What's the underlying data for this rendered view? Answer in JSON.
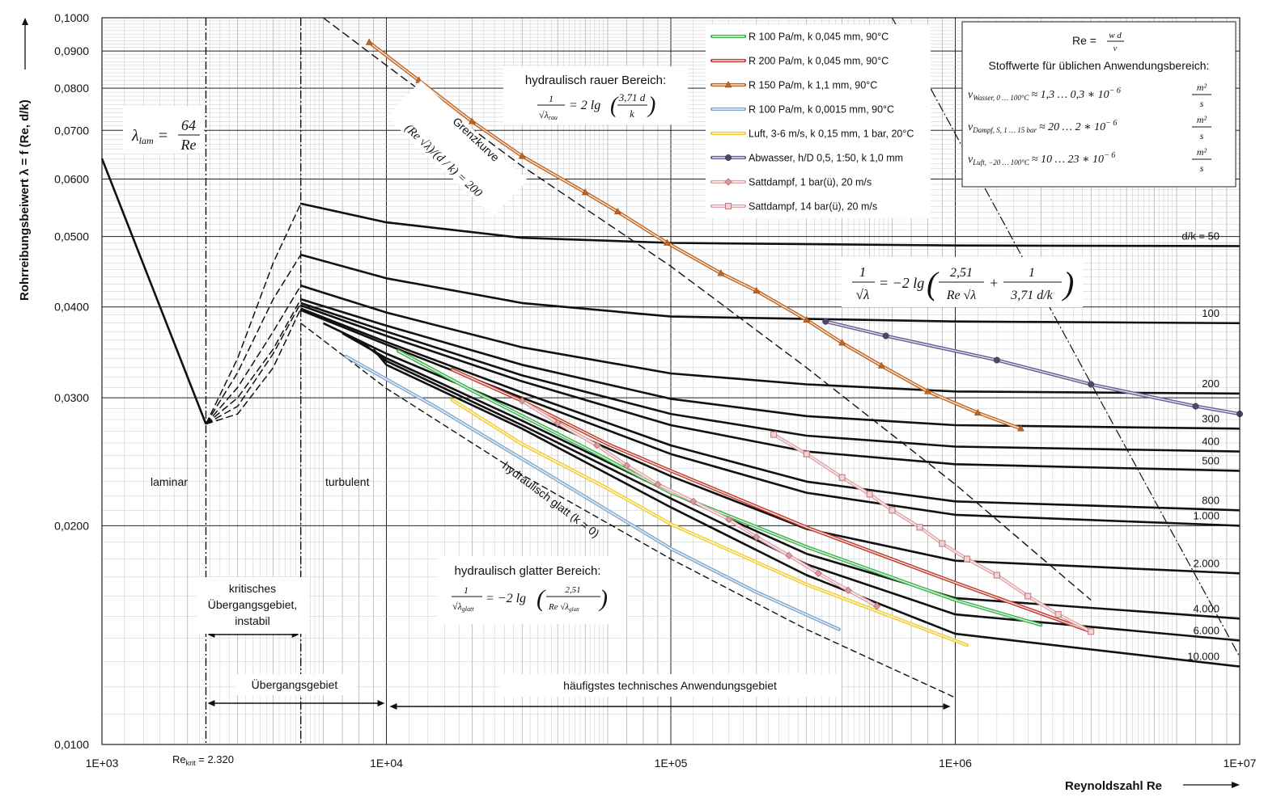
{
  "chart_data": {
    "type": "line",
    "title": "",
    "xlabel": "Reynoldszahl Re",
    "ylabel": "Rohrreibungsbeiwert λ = f (Re, d/k)",
    "x_scale": "log",
    "y_scale": "log",
    "xlim": [
      1000,
      10000000
    ],
    "ylim": [
      0.01,
      0.1
    ],
    "grid": true,
    "x_tick_labels": [
      "1E+03",
      "1E+04",
      "1E+05",
      "1E+06",
      "1E+07"
    ],
    "y_tick_labels": [
      {
        "value": 0.1,
        "label": "0,1000"
      },
      {
        "value": 0.09,
        "label": "0,0900"
      },
      {
        "value": 0.08,
        "label": "0,0800"
      },
      {
        "value": 0.07,
        "label": "0,0700"
      },
      {
        "value": 0.06,
        "label": "0,0600"
      },
      {
        "value": 0.05,
        "label": "0,0500"
      },
      {
        "value": 0.04,
        "label": "0,0400"
      },
      {
        "value": 0.03,
        "label": "0,0300"
      },
      {
        "value": 0.02,
        "label": "0,0200"
      },
      {
        "value": 0.01,
        "label": "0,0100"
      }
    ],
    "legend": {
      "placement": "top-center",
      "entries": [
        {
          "name": "R 100 Pa/m, k 0,045 mm, 90°C",
          "color": "#3cb44b",
          "marker": "none"
        },
        {
          "name": "R 200 Pa/m, k 0,045 mm, 90°C",
          "color": "#c0392b",
          "marker": "none"
        },
        {
          "name": "R 150 Pa/m, k 1,1 mm, 90°C",
          "color": "#c0651f",
          "marker": "triangle"
        },
        {
          "name": "R 100 Pa/m, k 0,0015 mm, 90°C",
          "color": "#7fa7d0",
          "marker": "none"
        },
        {
          "name": "Luft, 3-6 m/s, k 0,15 mm, 1 bar, 20°C",
          "color": "#f2cc2e",
          "marker": "none"
        },
        {
          "name": "Abwasser, h/D 0,5, 1:50, k 1,0 mm",
          "color": "#6b5b95",
          "marker": "circle"
        },
        {
          "name": "Sattdampf, 1 bar(ü), 20 m/s",
          "color": "#e0a3a8",
          "marker": "diamond"
        },
        {
          "name": "Sattdampf, 14 bar(ü), 20 m/s",
          "color": "#e0a3a8",
          "marker": "square"
        }
      ]
    },
    "laminar": {
      "x": [
        1000,
        2320
      ],
      "y": [
        0.064,
        0.0276
      ]
    },
    "transition_curves": [
      {
        "x": [
          2320,
          3000,
          4000,
          5000
        ],
        "y": [
          0.0276,
          0.034,
          0.046,
          0.0555
        ]
      },
      {
        "x": [
          2320,
          3000,
          4000,
          5000
        ],
        "y": [
          0.0276,
          0.0325,
          0.041,
          0.0472
        ]
      },
      {
        "x": [
          2320,
          3000,
          4000,
          5000
        ],
        "y": [
          0.0276,
          0.031,
          0.037,
          0.0428
        ]
      },
      {
        "x": [
          2320,
          3000,
          4000,
          5000
        ],
        "y": [
          0.0276,
          0.03,
          0.035,
          0.041
        ]
      },
      {
        "x": [
          2320,
          3000,
          4000,
          5000
        ],
        "y": [
          0.0276,
          0.0292,
          0.0345,
          0.0405
        ]
      },
      {
        "x": [
          2320,
          3000,
          4000,
          5000
        ],
        "y": [
          0.0276,
          0.0285,
          0.033,
          0.0398
        ]
      }
    ],
    "roughness_curves": [
      {
        "label": "d/k = 50",
        "x": [
          5000,
          10000,
          30000,
          100000,
          1000000,
          10000000
        ],
        "y": [
          0.0555,
          0.0523,
          0.0498,
          0.049,
          0.0486,
          0.0485
        ]
      },
      {
        "label": "100",
        "x": [
          5000,
          10000,
          30000,
          100000,
          1000000,
          10000000
        ],
        "y": [
          0.0472,
          0.0438,
          0.0405,
          0.0388,
          0.0382,
          0.038
        ]
      },
      {
        "label": "200",
        "x": [
          5000,
          10000,
          30000,
          100000,
          300000,
          1000000,
          10000000
        ],
        "y": [
          0.0428,
          0.0393,
          0.0352,
          0.0324,
          0.0313,
          0.0306,
          0.0304
        ]
      },
      {
        "label": "300",
        "x": [
          5000,
          10000,
          30000,
          100000,
          300000,
          1000000,
          10000000
        ],
        "y": [
          0.041,
          0.0377,
          0.0333,
          0.0299,
          0.0283,
          0.0275,
          0.0272
        ]
      },
      {
        "label": "400",
        "x": [
          5000,
          10000,
          30000,
          100000,
          300000,
          1000000,
          10000000
        ],
        "y": [
          0.0405,
          0.037,
          0.0322,
          0.0285,
          0.0266,
          0.0257,
          0.0253
        ]
      },
      {
        "label": "500",
        "x": [
          5000,
          10000,
          30000,
          100000,
          300000,
          1000000,
          10000000
        ],
        "y": [
          0.0402,
          0.0365,
          0.0316,
          0.0275,
          0.0253,
          0.0243,
          0.0238
        ]
      },
      {
        "label": "800",
        "x": [
          5000,
          10000,
          30000,
          100000,
          300000,
          1000000,
          10000000
        ],
        "y": [
          0.0398,
          0.0358,
          0.0305,
          0.0258,
          0.023,
          0.0216,
          0.021
        ]
      },
      {
        "label": "1.000",
        "x": [
          5000,
          10000,
          30000,
          100000,
          300000,
          1000000,
          10000000
        ],
        "y": [
          0.0396,
          0.0355,
          0.03,
          0.0251,
          0.0222,
          0.0207,
          0.02
        ]
      },
      {
        "label": "2.000",
        "x": [
          6000,
          10000,
          30000,
          100000,
          300000,
          1000000,
          10000000
        ],
        "y": [
          0.038,
          0.0345,
          0.0288,
          0.0234,
          0.0198,
          0.0179,
          0.0172
        ]
      },
      {
        "label": "4.000",
        "x": [
          7000,
          10000,
          30000,
          100000,
          300000,
          1000000,
          10000000
        ],
        "y": [
          0.0368,
          0.034,
          0.0279,
          0.0222,
          0.0183,
          0.0159,
          0.0149
        ]
      },
      {
        "label": "6.000",
        "x": [
          8000,
          10000,
          30000,
          100000,
          300000,
          1000000,
          10000000
        ],
        "y": [
          0.036,
          0.0337,
          0.0275,
          0.0218,
          0.0177,
          0.0151,
          0.0139
        ]
      },
      {
        "label": "10.000",
        "x": [
          9000,
          10000,
          30000,
          100000,
          300000,
          1000000,
          10000000
        ],
        "y": [
          0.035,
          0.0333,
          0.0272,
          0.0212,
          0.0171,
          0.0142,
          0.0128
        ]
      }
    ],
    "smooth_curve": {
      "x": [
        5000,
        10000,
        30000,
        100000,
        300000,
        1000000
      ],
      "y": [
        0.038,
        0.0309,
        0.0235,
        0.018,
        0.0144,
        0.0116
      ]
    },
    "limit_curve": {
      "x": [
        6000,
        10000,
        30000,
        100000,
        300000,
        1000000,
        3000000
      ],
      "y": [
        0.1,
        0.086,
        0.0625,
        0.0455,
        0.033,
        0.0228,
        0.0158
      ]
    },
    "series": [
      {
        "name": "R 100 Pa/m, k 0,045 mm, 90°C",
        "color": "#3cb44b",
        "marker": "none",
        "x": [
          11000,
          20000,
          50000,
          100000,
          300000,
          1000000,
          2000000
        ],
        "y": [
          0.0348,
          0.0307,
          0.0256,
          0.0222,
          0.0187,
          0.0158,
          0.0146
        ]
      },
      {
        "name": "R 200 Pa/m, k 0,045 mm, 90°C",
        "color": "#c0392b",
        "marker": "none",
        "x": [
          17000,
          30000,
          60000,
          100000,
          300000,
          1000000,
          3000000
        ],
        "y": [
          0.0328,
          0.0297,
          0.0259,
          0.0238,
          0.0199,
          0.0167,
          0.0143
        ]
      },
      {
        "name": "R 150 Pa/m, k 1,1 mm, 90°C",
        "color": "#c0651f",
        "marker": "triangle",
        "x": [
          8700,
          13000,
          20000,
          30000,
          50000,
          65000,
          97000,
          150000,
          200000,
          300000,
          400000,
          550000,
          800000,
          1200000,
          1700000
        ],
        "y": [
          0.0925,
          0.082,
          0.072,
          0.0645,
          0.0575,
          0.0541,
          0.049,
          0.0445,
          0.0421,
          0.0384,
          0.0357,
          0.0332,
          0.0306,
          0.0286,
          0.0272
        ]
      },
      {
        "name": "R 100 Pa/m, k 0,0015 mm, 90°C",
        "color": "#7fa7d0",
        "marker": "none",
        "x": [
          7200,
          15000,
          40000,
          100000,
          200000,
          390000
        ],
        "y": [
          0.0342,
          0.0291,
          0.0231,
          0.0186,
          0.0162,
          0.0144
        ]
      },
      {
        "name": "Luft, 3-6 m/s, k 0,15 mm, 1 bar, 20°C",
        "color": "#f2cc2e",
        "marker": "none",
        "x": [
          17000,
          30000,
          60000,
          100000,
          300000,
          1100000
        ],
        "y": [
          0.0298,
          0.0259,
          0.0225,
          0.0201,
          0.0166,
          0.0137
        ]
      },
      {
        "name": "Abwasser, h/D 0,5, 1:50, k 1,0 mm",
        "color": "#6b5b95",
        "marker": "circle",
        "x": [
          350000,
          570000,
          1400000,
          3000000,
          7000000,
          10000000
        ],
        "y": [
          0.0382,
          0.0365,
          0.0338,
          0.0313,
          0.0292,
          0.0285
        ]
      },
      {
        "name": "Sattdampf, 1 bar(ü), 20 m/s",
        "color": "#e0a3a8",
        "marker": "diamond",
        "x": [
          30000,
          40000,
          55000,
          70000,
          90000,
          120000,
          160000,
          200000,
          260000,
          330000,
          420000,
          530000
        ],
        "y": [
          0.0297,
          0.0277,
          0.0258,
          0.0242,
          0.0228,
          0.0216,
          0.0204,
          0.0193,
          0.0182,
          0.0172,
          0.0163,
          0.0155
        ]
      },
      {
        "name": "Sattdampf, 14 bar(ü), 20 m/s",
        "color": "#e0a3a8",
        "marker": "square",
        "x": [
          230000,
          300000,
          400000,
          500000,
          600000,
          750000,
          900000,
          1100000,
          1400000,
          1800000,
          2300000,
          3000000
        ],
        "y": [
          0.0267,
          0.0251,
          0.0233,
          0.0221,
          0.021,
          0.0199,
          0.0189,
          0.018,
          0.0171,
          0.016,
          0.0151,
          0.0143
        ]
      }
    ],
    "vertical_markers": [
      2320,
      5000
    ],
    "region_labels": {
      "laminar": "laminar",
      "turbulent": "turbulent",
      "critical": [
        "kritisches",
        "Übergangsgebiet,",
        "instabil"
      ],
      "transition": "Übergangsgebiet",
      "common": "häufigstes technisches Anwendungsgebiet",
      "rough": "hydraulisch rauer Bereich:",
      "smooth": "hydraulisch glatter Bereich:",
      "smooth_curve": "hydraulisch glatt (k = 0)",
      "limit_curve": "Grenzkurve",
      "limit_eq": "(Re √λ)/(d / k) = 200",
      "rekrit_prefix": "Re",
      "rekrit_sub": "krit",
      "rekrit_value": " = 2.320"
    },
    "formulas": {
      "laminar_lhs": "λ",
      "laminar_sub": "lam",
      "laminar_num": "64",
      "laminar_den": "Re",
      "rough_num": "1",
      "rough_den": "√λ",
      "rough_den_sub": "rau",
      "rough_rhs": "= 2 lg",
      "rough_arg_num": "3,71 d",
      "rough_arg_den": "k",
      "colebrook_num": "1",
      "colebrook_den": "√λ",
      "colebrook_mid": "= −2 lg",
      "colebrook_a_num": "2,51",
      "colebrook_a_den": "Re √λ",
      "colebrook_plus": "+",
      "colebrook_b_num": "1",
      "colebrook_b_den": "3,71  d/k",
      "smooth_num": "1",
      "smooth_den": "√λ",
      "smooth_den_sub": "glatt",
      "smooth_rhs": "= −2 lg",
      "smooth_arg_num": "2,51",
      "smooth_arg_den": "Re √λ",
      "smooth_arg_den_sub": "glatt"
    },
    "info_box": {
      "re_lhs": "Re =",
      "re_num": "w d",
      "re_den": "ν",
      "heading": "Stoffwerte für üblichen Anwendungsbereich:",
      "rows": [
        {
          "sym": "ν",
          "sub": "Wasser, 0 … 100°C",
          "val": "≈ 1,3 … 0,3 ∗ 10",
          "exp": "− 6",
          "unit_num": "m²",
          "unit_den": "s"
        },
        {
          "sym": "ν",
          "sub": "Dampf, S, 1 … 15 bar",
          "val": "≈ 20 … 2 ∗ 10",
          "exp": "− 6",
          "unit_num": "m²",
          "unit_den": "s"
        },
        {
          "sym": "ν",
          "sub": "Luft, −20 … 100°C",
          "val": "≈ 10 … 23 ∗ 10",
          "exp": "− 6",
          "unit_num": "m²",
          "unit_den": "s"
        }
      ]
    }
  }
}
